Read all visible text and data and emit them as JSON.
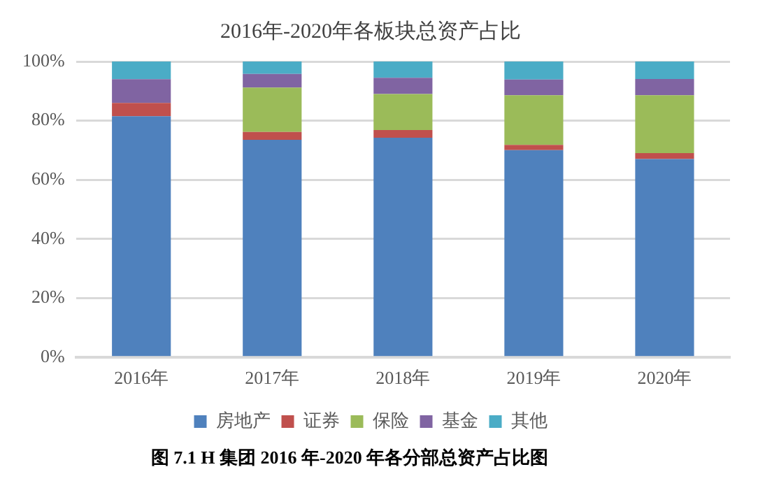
{
  "chart_data": {
    "type": "bar",
    "stacked": true,
    "title": "2016年-2020年各板块总资产占比",
    "categories": [
      "2016年",
      "2017年",
      "2018年",
      "2019年",
      "2020年"
    ],
    "series": [
      {
        "name": "房地产",
        "color": "#4f81bd",
        "values": [
          81.5,
          73.5,
          74.2,
          70,
          67
        ]
      },
      {
        "name": "证券",
        "color": "#c0504d",
        "values": [
          4.5,
          2.7,
          2.6,
          1.8,
          2
        ]
      },
      {
        "name": "保险",
        "color": "#9bbb59",
        "values": [
          0,
          15,
          12.2,
          16.8,
          19.6
        ]
      },
      {
        "name": "基金",
        "color": "#8064a2",
        "values": [
          8,
          4.6,
          5.5,
          5.3,
          5.5
        ]
      },
      {
        "name": "其他",
        "color": "#4bacc6",
        "values": [
          6,
          4.2,
          5.5,
          6.1,
          5.9
        ]
      }
    ],
    "ylim": [
      0,
      100
    ],
    "yticks": [
      {
        "value": 0,
        "label": "0%"
      },
      {
        "value": 20,
        "label": "20%"
      },
      {
        "value": 40,
        "label": "40%"
      },
      {
        "value": 60,
        "label": "60%"
      },
      {
        "value": 80,
        "label": "80%"
      },
      {
        "value": 100,
        "label": "100%"
      }
    ],
    "grid": "y",
    "legend": "bottom",
    "annotations": [
      "图 7.1 H 集团 2016 年-2020 年各分部总资产占比图"
    ]
  }
}
